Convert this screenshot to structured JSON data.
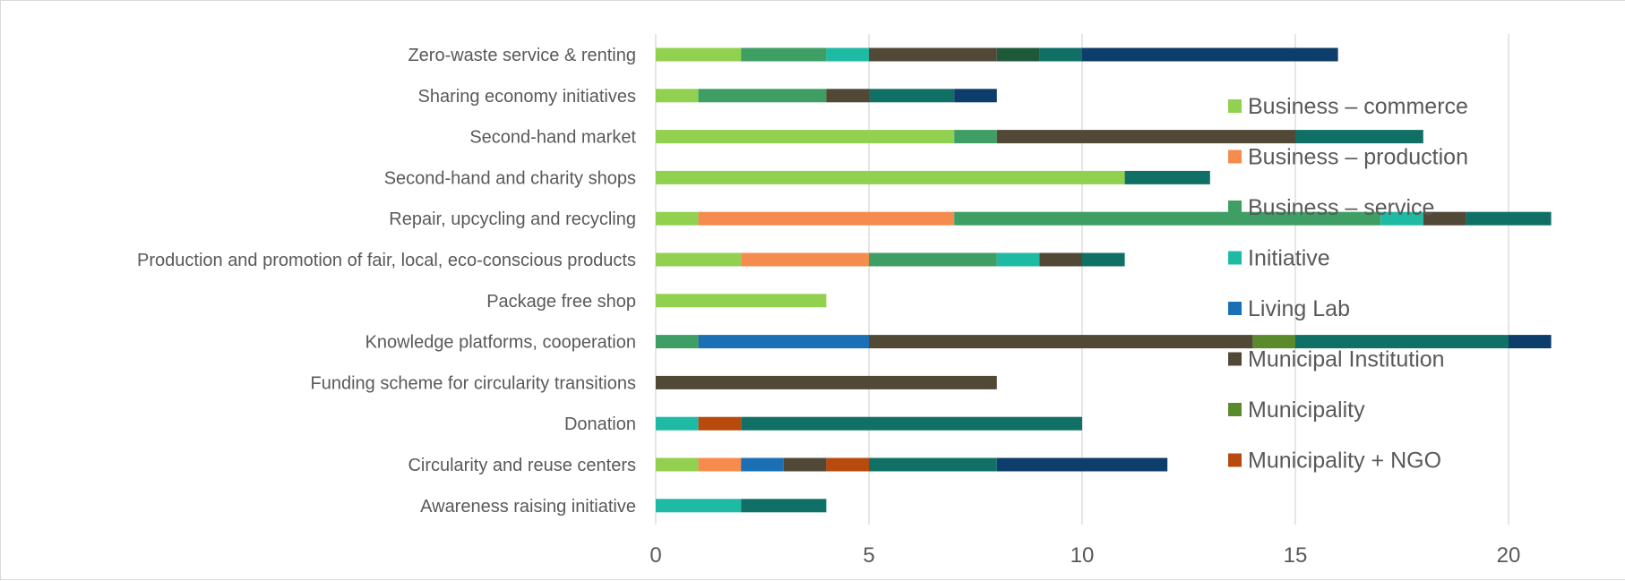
{
  "chart_data": {
    "type": "bar",
    "orientation": "horizontal",
    "stacked": true,
    "title": "",
    "xlabel": "",
    "ylabel": "",
    "xlim": [
      0,
      25
    ],
    "x_ticks": [
      0,
      5,
      10,
      15,
      20,
      25
    ],
    "grid": "vertical",
    "legend_position": "right",
    "categories": [
      "Zero-waste service & renting",
      "Sharing economy initiatives",
      "Second-hand market",
      "Second-hand and charity shops",
      "Repair, upcycling and recycling",
      "Production and promotion of fair, local, eco-conscious products",
      "Package free shop",
      "Knowledge platforms, cooperation",
      "Funding scheme for circularity transitions",
      "Donation",
      "Circularity and reuse centers",
      "Awareness raising initiative"
    ],
    "series": [
      {
        "name": "Business – commerce",
        "color": "#92d050",
        "values": [
          2,
          1,
          7,
          11,
          1,
          2,
          4,
          0,
          0,
          0,
          1,
          0
        ]
      },
      {
        "name": "Business – production",
        "color": "#f58b4c",
        "values": [
          0,
          0,
          0,
          0,
          6,
          3,
          0,
          0,
          0,
          0,
          1,
          0
        ]
      },
      {
        "name": "Business – service",
        "color": "#3e9e63",
        "values": [
          2,
          3,
          1,
          0,
          10,
          3,
          0,
          1,
          0,
          0,
          0,
          0
        ]
      },
      {
        "name": "Initiative",
        "color": "#1ebaa4",
        "values": [
          1,
          0,
          0,
          0,
          1,
          1,
          0,
          0,
          0,
          1,
          0,
          2
        ]
      },
      {
        "name": "Living Lab",
        "color": "#1a6fb5",
        "values": [
          0,
          0,
          0,
          0,
          0,
          0,
          0,
          4,
          0,
          0,
          1,
          0
        ]
      },
      {
        "name": "Municipal Institution",
        "color": "#514836",
        "values": [
          3,
          1,
          7,
          0,
          1,
          1,
          0,
          9,
          8,
          0,
          1,
          0
        ]
      },
      {
        "name": "Municipality",
        "color": "#5b8a2d",
        "values": [
          0,
          0,
          0,
          0,
          0,
          0,
          0,
          1,
          0,
          0,
          0,
          0
        ]
      },
      {
        "name": "Municipality + NGO",
        "color": "#b84a0e",
        "values": [
          0,
          0,
          0,
          0,
          0,
          0,
          0,
          0,
          0,
          1,
          1,
          0
        ]
      },
      {
        "name": "",
        "color": "#0f6b62",
        "values": [
          0,
          0,
          0,
          0,
          0,
          0,
          0,
          0,
          0,
          0,
          0,
          0
        ]
      },
      {
        "name": "",
        "color": "#1e5a3a",
        "values": [
          1,
          0,
          0,
          0,
          0,
          0,
          0,
          0,
          0,
          0,
          0,
          0
        ]
      },
      {
        "name": "",
        "color": "#117066",
        "values": [
          1,
          2,
          3,
          2,
          2,
          1,
          0,
          5,
          0,
          8,
          3,
          2
        ]
      },
      {
        "name": "",
        "color": "#0c3d6b",
        "values": [
          6,
          1,
          0,
          0,
          0,
          0,
          0,
          1,
          0,
          0,
          4,
          0
        ]
      }
    ]
  }
}
